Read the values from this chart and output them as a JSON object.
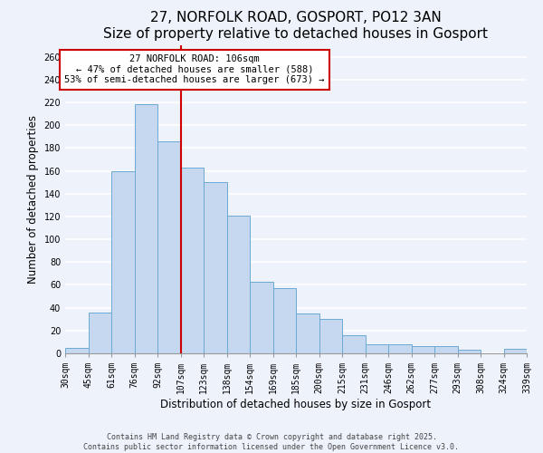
{
  "title": "27, NORFOLK ROAD, GOSPORT, PO12 3AN",
  "subtitle": "Size of property relative to detached houses in Gosport",
  "xlabel": "Distribution of detached houses by size in Gosport",
  "ylabel": "Number of detached properties",
  "categories": [
    "30sqm",
    "45sqm",
    "61sqm",
    "76sqm",
    "92sqm",
    "107sqm",
    "123sqm",
    "138sqm",
    "154sqm",
    "169sqm",
    "185sqm",
    "200sqm",
    "215sqm",
    "231sqm",
    "246sqm",
    "262sqm",
    "277sqm",
    "293sqm",
    "308sqm",
    "324sqm",
    "339sqm"
  ],
  "values": [
    5,
    36,
    160,
    218,
    186,
    163,
    150,
    121,
    63,
    57,
    35,
    30,
    16,
    8,
    8,
    6,
    6,
    3,
    0,
    4
  ],
  "bar_color": "#c5d8f0",
  "bar_edge_color": "#6aaad4",
  "vline_color": "#cc0000",
  "annotation_title": "27 NORFOLK ROAD: 106sqm",
  "annotation_line1": "← 47% of detached houses are smaller (588)",
  "annotation_line2": "53% of semi-detached houses are larger (673) →",
  "annotation_box_color": "#ffffff",
  "annotation_box_edge_color": "#cc0000",
  "ylim": [
    0,
    270
  ],
  "yticks": [
    0,
    20,
    40,
    60,
    80,
    100,
    120,
    140,
    160,
    180,
    200,
    220,
    240,
    260
  ],
  "footnote1": "Contains HM Land Registry data © Crown copyright and database right 2025.",
  "footnote2": "Contains public sector information licensed under the Open Government Licence v3.0.",
  "background_color": "#eef2fb",
  "grid_color": "#ffffff",
  "title_fontsize": 11,
  "axis_label_fontsize": 8.5,
  "tick_fontsize": 7
}
